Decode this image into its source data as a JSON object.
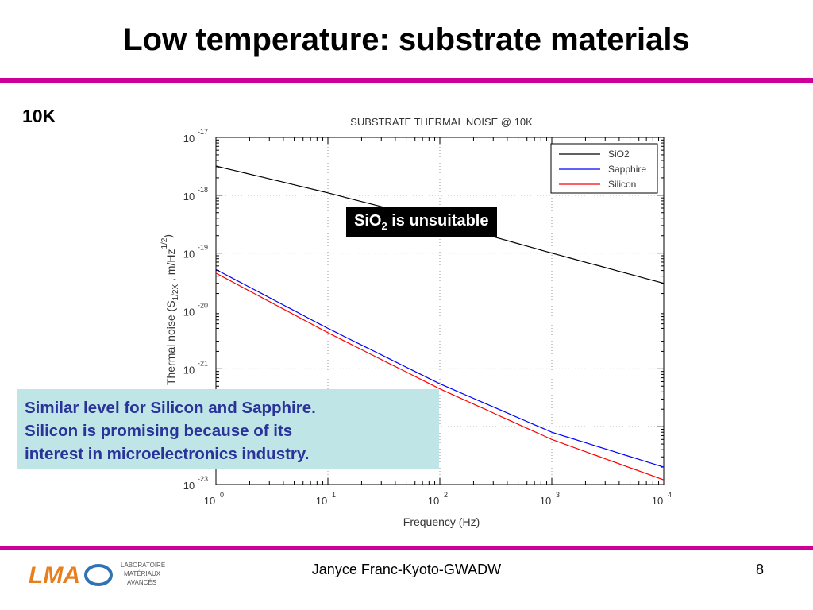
{
  "slide": {
    "title": "Low temperature: substrate materials",
    "temperature_label": "10K",
    "callout_unsuitable": {
      "prefix": "SiO",
      "sub": "2",
      "suffix": " is unsuitable"
    },
    "note_lines": [
      "Similar level for Silicon and Sapphire.",
      "Silicon is promising because of its",
      "interest in microelectronics industry."
    ],
    "footer": "Janyce Franc-Kyoto-GWADW",
    "page_number": "8",
    "logo": {
      "wordmark": "LMA",
      "lines": [
        "LABORATOIRE",
        "MATÉRIAUX",
        "AVANCÉS"
      ],
      "colors": {
        "orange": "#e87f1e",
        "blue": "#2f73b6"
      }
    },
    "colors": {
      "rule": "#cc0099",
      "note_bg": "#bfe5e6",
      "note_text": "#2a3399"
    }
  },
  "chart_data": {
    "type": "line",
    "title": "SUBSTRATE THERMAL NOISE @ 10K",
    "xlabel": "Frequency (Hz)",
    "ylabel": "Thermal noise (S1/2X , m/Hz1/2)",
    "x_scale": "log",
    "y_scale": "log",
    "xlim": [
      1,
      10000
    ],
    "ylim": [
      1e-23,
      1e-17
    ],
    "x_ticks": [
      {
        "base": "10",
        "exp": "0"
      },
      {
        "base": "10",
        "exp": "1"
      },
      {
        "base": "10",
        "exp": "2"
      },
      {
        "base": "10",
        "exp": "3"
      },
      {
        "base": "10",
        "exp": "4"
      }
    ],
    "y_ticks": [
      {
        "base": "10",
        "exp": "-17"
      },
      {
        "base": "10",
        "exp": "-18"
      },
      {
        "base": "10",
        "exp": "-19"
      },
      {
        "base": "10",
        "exp": "-20"
      },
      {
        "base": "10",
        "exp": "-21"
      },
      {
        "base": "10",
        "exp": "-22"
      },
      {
        "base": "10",
        "exp": "-23"
      }
    ],
    "legend_position": "top-right",
    "series": [
      {
        "name": "SiO2",
        "color": "#000000",
        "x": [
          1,
          10,
          100,
          1000,
          10000
        ],
        "y": [
          3.2e-18,
          1.1e-18,
          3.5e-19,
          1e-19,
          3e-20
        ]
      },
      {
        "name": "Sapphire",
        "color": "#0000ff",
        "x": [
          1,
          10,
          100,
          1000,
          10000
        ],
        "y": [
          5.2e-20,
          5e-21,
          5.5e-22,
          8e-23,
          2e-23
        ]
      },
      {
        "name": "Silicon",
        "color": "#ff0000",
        "x": [
          1,
          10,
          100,
          1000,
          10000
        ],
        "y": [
          4.5e-20,
          4.2e-21,
          4.5e-22,
          6e-23,
          1.2e-23
        ]
      }
    ]
  }
}
